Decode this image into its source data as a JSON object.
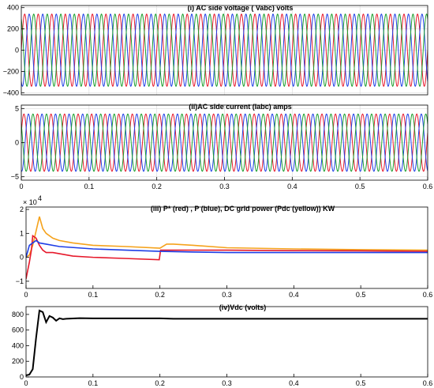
{
  "chart_data": [
    {
      "type": "line",
      "title": "(i) AC side voltage ( Vabc) volts",
      "xlim": [
        0,
        0.6
      ],
      "ylim": [
        -420,
        420
      ],
      "yticks": [
        "400",
        "200",
        "0",
        "−200",
        "−400"
      ],
      "ytick_values": [
        400,
        200,
        0,
        -200,
        -400
      ],
      "xticks": [],
      "grid": true,
      "series": [
        {
          "color": "#e6192b",
          "amplitude": 340,
          "frequency_hz": 50,
          "phase_deg": 0
        },
        {
          "color": "#1f3ee6",
          "amplitude": 340,
          "frequency_hz": 50,
          "phase_deg": -120
        },
        {
          "color": "#1a9e2e",
          "amplitude": 340,
          "frequency_hz": 50,
          "phase_deg": 120
        }
      ]
    },
    {
      "type": "line",
      "title": "(ii)AC side current (Iabc) amps",
      "xlim": [
        0,
        0.6
      ],
      "ylim": [
        -5.5,
        5.5
      ],
      "yticks": [
        "5",
        "0",
        "−5"
      ],
      "ytick_values": [
        5,
        0,
        -5
      ],
      "xticks": [
        "0",
        "0.1",
        "0.2",
        "0.3",
        "0.4",
        "0.5",
        "0.6"
      ],
      "xtick_values": [
        0,
        0.1,
        0.2,
        0.3,
        0.4,
        0.5,
        0.6
      ],
      "grid": true,
      "series": [
        {
          "color": "#e6192b",
          "amplitude": 4.2,
          "frequency_hz": 50,
          "phase_deg": 20
        },
        {
          "color": "#1f3ee6",
          "amplitude": 4.2,
          "frequency_hz": 50,
          "phase_deg": -100
        },
        {
          "color": "#1a9e2e",
          "amplitude": 4.2,
          "frequency_hz": 50,
          "phase_deg": 140
        }
      ]
    },
    {
      "type": "line",
      "title": "(iii) P* (red) ,  P (blue), DC grid power (Pdc (yellow)) KW",
      "exponent_label": "× 10",
      "exponent_power": "4",
      "xlim": [
        0,
        0.6
      ],
      "ylim": [
        -1.3,
        2.1
      ],
      "yticks": [
        "2",
        "1",
        "0",
        "−1"
      ],
      "ytick_values": [
        2,
        1,
        0,
        -1
      ],
      "xticks": [
        "0",
        "0.1",
        "0.2",
        "0.3",
        "0.4",
        "0.5",
        "0.6"
      ],
      "xtick_values": [
        0,
        0.1,
        0.2,
        0.3,
        0.4,
        0.5,
        0.6
      ],
      "grid": false,
      "series": [
        {
          "color": "#f5a21b",
          "x": [
            0,
            0.005,
            0.01,
            0.015,
            0.02,
            0.025,
            0.03,
            0.04,
            0.05,
            0.07,
            0.1,
            0.15,
            0.2,
            0.21,
            0.22,
            0.25,
            0.3,
            0.4,
            0.5,
            0.6
          ],
          "y": [
            0.0,
            0.1,
            0.5,
            1.1,
            1.7,
            1.2,
            1.0,
            0.8,
            0.7,
            0.6,
            0.5,
            0.45,
            0.38,
            0.55,
            0.55,
            0.5,
            0.4,
            0.35,
            0.32,
            0.3
          ]
        },
        {
          "color": "#e6192b",
          "x": [
            0,
            0.005,
            0.008,
            0.01,
            0.015,
            0.02,
            0.025,
            0.03,
            0.04,
            0.05,
            0.07,
            0.1,
            0.15,
            0.199,
            0.201,
            0.22,
            0.3,
            0.4,
            0.5,
            0.6
          ],
          "y": [
            -0.9,
            -0.2,
            0.3,
            0.9,
            0.8,
            0.5,
            0.3,
            0.2,
            0.2,
            0.15,
            0.05,
            0.0,
            -0.05,
            -0.1,
            0.3,
            0.3,
            0.3,
            0.28,
            0.27,
            0.25
          ]
        },
        {
          "color": "#1f3ee6",
          "x": [
            0,
            0.005,
            0.01,
            0.015,
            0.02,
            0.03,
            0.05,
            0.1,
            0.15,
            0.2,
            0.25,
            0.3,
            0.4,
            0.5,
            0.6
          ],
          "y": [
            0.0,
            0.5,
            0.6,
            0.7,
            0.6,
            0.55,
            0.45,
            0.35,
            0.3,
            0.25,
            0.22,
            0.2,
            0.2,
            0.2,
            0.2
          ]
        }
      ]
    },
    {
      "type": "line",
      "title": "(iv)Vdc (volts)",
      "xlim": [
        0,
        0.6
      ],
      "ylim": [
        0,
        900
      ],
      "yticks": [
        "800",
        "600",
        "400",
        "200",
        "0"
      ],
      "ytick_values": [
        800,
        600,
        400,
        200,
        0
      ],
      "xticks": [
        "0",
        "0.1",
        "0.2",
        "0.3",
        "0.4",
        "0.5",
        "0.6"
      ],
      "xtick_values": [
        0,
        0.1,
        0.2,
        0.3,
        0.4,
        0.5,
        0.6
      ],
      "grid": false,
      "series": [
        {
          "color": "#000000",
          "x": [
            0,
            0.005,
            0.01,
            0.015,
            0.02,
            0.025,
            0.03,
            0.035,
            0.04,
            0.045,
            0.05,
            0.055,
            0.06,
            0.07,
            0.08,
            0.1,
            0.15,
            0.2,
            0.22,
            0.3,
            0.4,
            0.5,
            0.6
          ],
          "y": [
            20,
            30,
            100,
            500,
            850,
            830,
            700,
            780,
            760,
            720,
            750,
            740,
            745,
            748,
            752,
            750,
            750,
            750,
            745,
            745,
            745,
            745,
            745
          ]
        }
      ]
    }
  ]
}
